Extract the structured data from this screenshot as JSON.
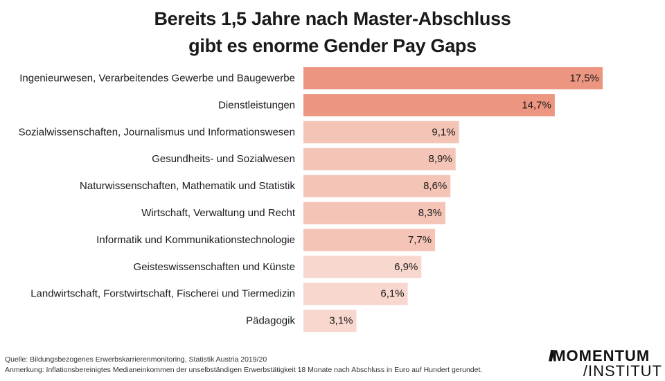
{
  "title_line1": "Bereits 1,5 Jahre nach Master-Abschluss",
  "title_line2": "gibt es enorme Gender Pay Gaps",
  "chart_data": {
    "type": "bar",
    "orientation": "horizontal",
    "categories": [
      "Ingenieurwesen, Verarbeitendes Gewerbe und Baugewerbe",
      "Dienstleistungen",
      "Sozialwissenschaften, Journalismus und Informationswesen",
      "Gesundheits- und Sozialwesen",
      "Naturwissenschaften, Mathematik und Statistik",
      "Wirtschaft, Verwaltung und Recht",
      "Informatik und Kommunikationstechnologie",
      "Geisteswissenschaften und Künste",
      "Landwirtschaft, Forstwirtschaft, Fischerei und Tiermedizin",
      "Pädagogik"
    ],
    "values": [
      17.5,
      14.7,
      9.1,
      8.9,
      8.6,
      8.3,
      7.7,
      6.9,
      6.1,
      3.1
    ],
    "value_labels": [
      "17,5%",
      "14,7%",
      "9,1%",
      "8,9%",
      "8,6%",
      "8,3%",
      "7,7%",
      "6,9%",
      "6,1%",
      "3,1%"
    ],
    "colors": [
      "#ec9580",
      "#ec9580",
      "#f4c4b6",
      "#f4c4b6",
      "#f4c4b6",
      "#f4c4b6",
      "#f4c4b6",
      "#f7d7ce",
      "#f7d7ce",
      "#f7d7ce"
    ],
    "xlim": [
      0,
      17.5
    ],
    "grid": false,
    "legend": "none"
  },
  "footer": {
    "source": "Quelle: Bildungsbezogenes Erwerbskarrierenmonitoring, Statistik Austria 2019/20",
    "note": "Anmerkung: Inflationsbereinigtes Medianeinkommen der unselbständigen Erwerbstätigkeit 18 Monate nach Abschluss in Euro auf Hundert gerundet."
  },
  "logo": {
    "line1": "MOMENTUM",
    "line2": "INSTITUT"
  }
}
